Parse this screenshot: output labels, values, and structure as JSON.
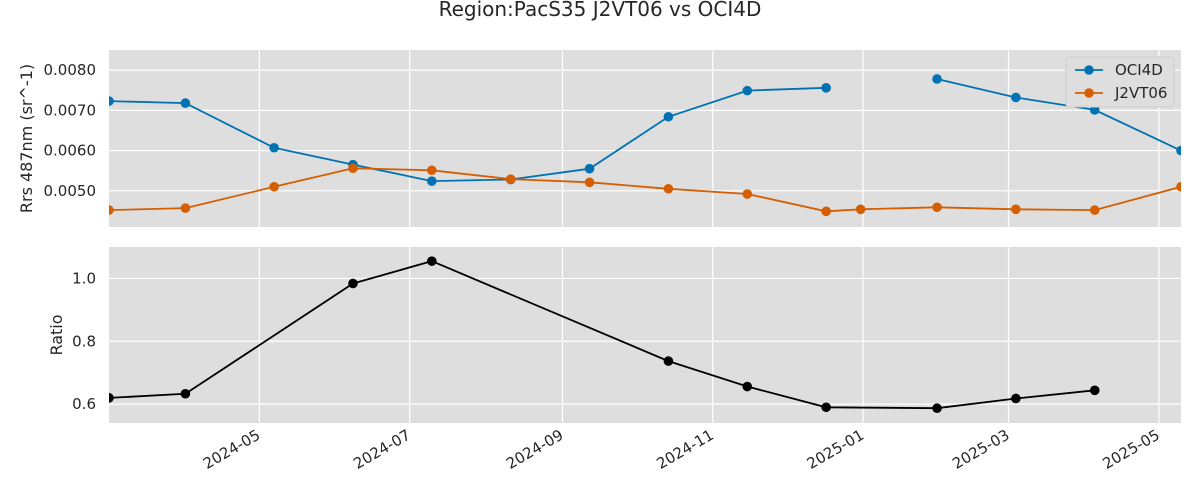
{
  "chart_data": {
    "title": "Region:PacS35 J2VT06 vs OCI4D",
    "x_tick_labels": [
      "2024-05",
      "2024-07",
      "2024-09",
      "2024-11",
      "2025-01",
      "2025-03",
      "2025-05"
    ],
    "x_tick_dates": [
      "2024-05-01",
      "2024-07-01",
      "2024-09-01",
      "2024-11-01",
      "2025-01-01",
      "2025-03-01",
      "2025-05-01"
    ],
    "xlim": [
      "2024-03-01",
      "2025-05-10"
    ],
    "grid": true,
    "panels": [
      {
        "type": "line",
        "ylabel": "Rrs 487nm (sr^-1)",
        "ylim": [
          0.0041,
          0.0085
        ],
        "y_ticks": [
          0.005,
          0.006,
          0.007,
          0.008
        ],
        "y_tick_labels": [
          "0.0050",
          "0.0060",
          "0.0070",
          "0.0080"
        ],
        "legend_position": "top-right",
        "series": [
          {
            "name": "OCI4D",
            "color": "#0072b2",
            "points": [
              {
                "x": "2024-03-01",
                "y": 0.00723
              },
              {
                "x": "2024-04-01",
                "y": 0.00718
              },
              {
                "x": "2024-05-07",
                "y": 0.00607
              },
              {
                "x": "2024-06-08",
                "y": 0.00565
              },
              {
                "x": "2024-07-10",
                "y": 0.00524
              },
              {
                "x": "2024-08-11",
                "y": 0.00528
              },
              {
                "x": "2024-09-12",
                "y": 0.00555
              },
              {
                "x": "2024-10-14",
                "y": 0.00684
              },
              {
                "x": "2024-11-15",
                "y": 0.00749
              },
              {
                "x": "2024-12-17",
                "y": 0.00756
              },
              {
                "x": "2024-12-31",
                "y": null
              },
              {
                "x": "2025-01-31",
                "y": 0.00778
              },
              {
                "x": "2025-03-04",
                "y": 0.00732
              },
              {
                "x": "2025-04-05",
                "y": 0.00701
              },
              {
                "x": "2025-05-10",
                "y": 0.006
              }
            ]
          },
          {
            "name": "J2VT06",
            "color": "#d55e00",
            "points": [
              {
                "x": "2024-03-01",
                "y": 0.00452
              },
              {
                "x": "2024-04-01",
                "y": 0.00457
              },
              {
                "x": "2024-05-07",
                "y": 0.0051
              },
              {
                "x": "2024-06-08",
                "y": 0.00556
              },
              {
                "x": "2024-07-10",
                "y": 0.00551
              },
              {
                "x": "2024-08-11",
                "y": 0.00529
              },
              {
                "x": "2024-09-12",
                "y": 0.00521
              },
              {
                "x": "2024-10-14",
                "y": 0.00505
              },
              {
                "x": "2024-11-15",
                "y": 0.00492
              },
              {
                "x": "2024-12-17",
                "y": 0.00449
              },
              {
                "x": "2024-12-31",
                "y": 0.00454
              },
              {
                "x": "2025-01-31",
                "y": 0.00459
              },
              {
                "x": "2025-03-04",
                "y": 0.00454
              },
              {
                "x": "2025-04-05",
                "y": 0.00452
              },
              {
                "x": "2025-05-10",
                "y": 0.0051
              }
            ]
          }
        ]
      },
      {
        "type": "line",
        "ylabel": "Ratio",
        "ylim": [
          0.54,
          1.1
        ],
        "y_ticks": [
          0.6,
          0.8,
          1.0
        ],
        "y_tick_labels": [
          "0.6",
          "0.8",
          "1.0"
        ],
        "series": [
          {
            "color": "#000000",
            "points": [
              {
                "x": "2024-03-01",
                "y": 0.62
              },
              {
                "x": "2024-04-01",
                "y": 0.633
              },
              {
                "x": "2024-06-08",
                "y": 0.984
              },
              {
                "x": "2024-07-10",
                "y": 1.055
              },
              {
                "x": "2024-10-14",
                "y": 0.737
              },
              {
                "x": "2024-11-15",
                "y": 0.656
              },
              {
                "x": "2024-12-17",
                "y": 0.59
              },
              {
                "x": "2025-01-31",
                "y": 0.587
              },
              {
                "x": "2025-03-04",
                "y": 0.618
              },
              {
                "x": "2025-04-05",
                "y": 0.644
              }
            ]
          }
        ]
      }
    ]
  }
}
